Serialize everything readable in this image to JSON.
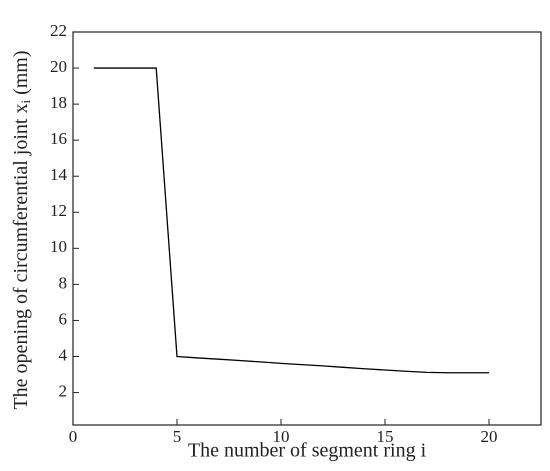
{
  "chart_data": {
    "type": "line",
    "xlabel": "The number of segment ring i",
    "ylabel": "The opening of circumferential joint x",
    "ylabel_sub": "i",
    "ylabel_unit": "(mm)",
    "x": [
      1,
      2,
      3,
      4,
      5,
      6,
      7,
      8,
      9,
      10,
      11,
      12,
      13,
      14,
      15,
      16,
      17,
      18,
      19,
      20
    ],
    "series": [
      {
        "color": "#000000",
        "values": [
          20,
          20,
          20,
          20,
          4.0,
          3.92,
          3.85,
          3.78,
          3.7,
          3.62,
          3.55,
          3.48,
          3.4,
          3.32,
          3.25,
          3.18,
          3.12,
          3.1,
          3.1,
          3.1
        ]
      }
    ],
    "xlim": [
      0,
      22.5
    ],
    "ylim": [
      0.2,
      22
    ],
    "xticks": [
      0,
      5,
      10,
      15,
      20
    ],
    "yticks": [
      2,
      4,
      6,
      8,
      10,
      12,
      14,
      16,
      18,
      20,
      22
    ]
  }
}
